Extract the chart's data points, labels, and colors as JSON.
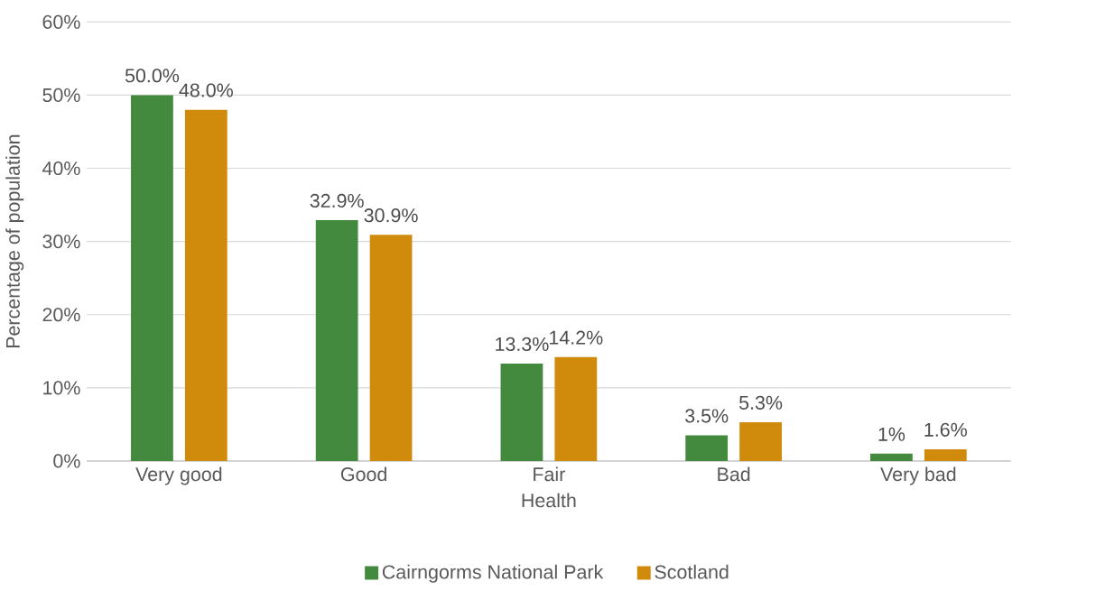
{
  "chart_data": {
    "type": "bar",
    "xlabel": "Health",
    "ylabel": "Percentage of population",
    "categories": [
      "Very good",
      "Good",
      "Fair",
      "Bad",
      "Very bad"
    ],
    "series": [
      {
        "name": "Cairngorms National Park",
        "color": "#448a3e",
        "values": [
          50.0,
          32.9,
          13.3,
          3.5,
          1
        ],
        "value_labels": [
          "50.0%",
          "32.9%",
          "13.3%",
          "3.5%",
          "1%"
        ]
      },
      {
        "name": "Scotland",
        "color": "#d08a0c",
        "values": [
          48.0,
          30.9,
          14.2,
          5.3,
          1.6
        ],
        "value_labels": [
          "48.0%",
          "30.9%",
          "14.2%",
          "5.3%",
          "1.6%"
        ]
      }
    ],
    "ylim": [
      0,
      60
    ],
    "yticks": [
      {
        "value": 0,
        "label": "0%"
      },
      {
        "value": 10,
        "label": "10%"
      },
      {
        "value": 20,
        "label": "20%"
      },
      {
        "value": 30,
        "label": "30%"
      },
      {
        "value": 40,
        "label": "40%"
      },
      {
        "value": 50,
        "label": "50%"
      },
      {
        "value": 60,
        "label": "60%"
      }
    ],
    "grid": "y",
    "legend": "bottom"
  }
}
